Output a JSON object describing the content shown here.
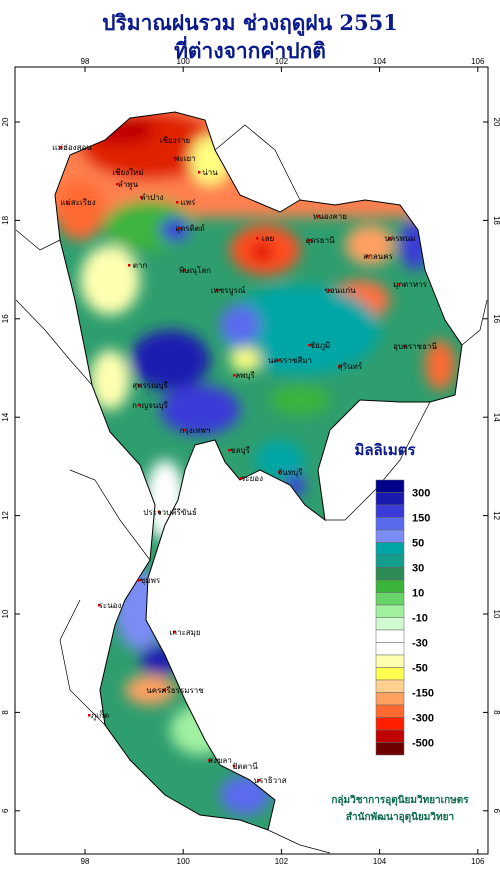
{
  "title": [
    "ปริมาณฝนรวม ช่วงฤดูฝน 2551",
    "ที่ต่างจากค่าปกติ"
  ],
  "map": {
    "xticks": [
      98,
      100,
      102,
      104,
      106
    ],
    "yticks": [
      6,
      8,
      10,
      12,
      14,
      16,
      18,
      20
    ]
  },
  "legend": {
    "title": "มิลลิเมตร",
    "labels": [
      300,
      150,
      50,
      30,
      10,
      -10,
      -30,
      -50,
      -150,
      -300,
      -500
    ],
    "colors": [
      "#00008b",
      "#1a1ab0",
      "#3a3ad8",
      "#5b6bf0",
      "#7b8cf5",
      "#00a6a6",
      "#149e8e",
      "#2e8b57",
      "#3cb43c",
      "#66d466",
      "#a0f0a0",
      "#d0fad0",
      "#ffffff",
      "#ffffff",
      "#ffffb0",
      "#ffff50",
      "#ffd090",
      "#ffa060",
      "#ff6a30",
      "#ff2000",
      "#c00000",
      "#700000"
    ]
  },
  "places": [
    "เเม่ฮ่องสอน",
    "เชียงราย",
    "เชียงใหม่",
    "พะเยา",
    "น่าน",
    "ลำพูน",
    "ลำปาง",
    "แม่สะเรียง",
    "แพร่",
    "อุตรดิตถ์",
    "ตาก",
    "พิษณุโลก",
    "เลย",
    "เพชรบูรณ์",
    "หนองคาย",
    "อุดรธานี",
    "นครพนม",
    "สกลนคร",
    "มุกดาหาร",
    "ขอนแก่น",
    "ชัยภูมิ",
    "นครราชสีมา",
    "สุรินทร์",
    "อุบลราชธานี",
    "ลพบุรี",
    "สุพรรณบุรี",
    "กาญจนบุรี",
    "กรุงเทพฯ",
    "ชลบุรี",
    "ระยอง",
    "จันทบุรี",
    "ประจวบคีรีขันธ์",
    "ชุมพร",
    "ระนอง",
    "เกาะสมุย",
    "ภูเก็ต",
    "นครศรีธรรมราช",
    "สงขลา",
    "ปัตตานี",
    "นราธิวาส"
  ],
  "credit": [
    "กลุ่มวิชาการอุตุนิยมวิทยาเกษตร",
    "สำนักพัฒนาอุตุนิยมวิทยา"
  ]
}
